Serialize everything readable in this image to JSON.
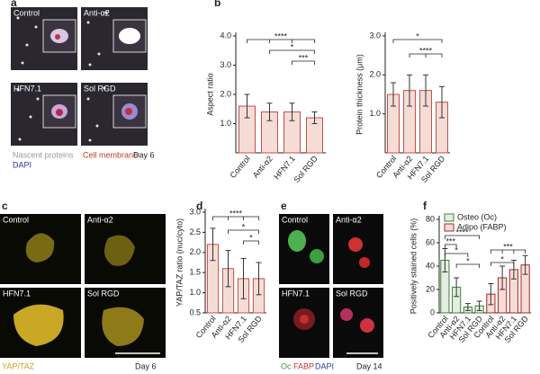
{
  "image_panels": {
    "a": {
      "label": "a",
      "cells": [
        "Control",
        "Anti-α2",
        "HFN7.1",
        "Sol RGD"
      ],
      "legend": [
        "Nascent proteins",
        "Cell membrane",
        "Day 6",
        "DAPI"
      ]
    },
    "c": {
      "label": "c",
      "cells": [
        "Control",
        "Anti-α2",
        "HFN7.1",
        "Sol RGD"
      ],
      "legend": [
        "YAP/TAZ",
        "Day 6"
      ]
    },
    "e": {
      "label": "e",
      "cells": [
        "Control",
        "Anti-α2",
        "HFN7.1",
        "Sol RGD"
      ],
      "legend": [
        "Oc",
        "FABP",
        "DAPI",
        "Day 14"
      ]
    }
  },
  "chart_data": [
    {
      "type": "bar",
      "panel_label": "b",
      "ylabel": "Aspect ratio",
      "categories": [
        "Control",
        "Anti-α2",
        "HFN7.1",
        "Sol RGD"
      ],
      "series": [
        {
          "color": "#f5ddd6",
          "edge": "#c0504d",
          "values": [
            1.6,
            1.4,
            1.4,
            1.2
          ],
          "errors": [
            0.4,
            0.3,
            0.3,
            0.2
          ]
        }
      ],
      "ylim": [
        0,
        4
      ],
      "yticks": [
        {
          "value": 1,
          "label": "1.0"
        },
        {
          "value": 2,
          "label": "2.0"
        },
        {
          "value": 3,
          "label": "3.0"
        },
        {
          "value": 4,
          "label": "4.0"
        }
      ],
      "annotations": [
        "****",
        "*",
        "***"
      ]
    },
    {
      "type": "bar",
      "ylabel": "Protein thickness (μm)",
      "categories": [
        "Control",
        "Anti-α2",
        "HFN7.1",
        "Sol RGD"
      ],
      "series": [
        {
          "color": "#f5ddd6",
          "edge": "#c0504d",
          "values": [
            1.5,
            1.6,
            1.6,
            1.3
          ],
          "errors": [
            0.3,
            0.4,
            0.4,
            0.4
          ]
        }
      ],
      "ylim": [
        0,
        3
      ],
      "yticks": [
        {
          "value": 1,
          "label": "1.0"
        },
        {
          "value": 2,
          "label": "2.0"
        },
        {
          "value": 3,
          "label": "3.0"
        }
      ],
      "annotations": [
        "*",
        "****"
      ]
    },
    {
      "type": "bar",
      "panel_label": "d",
      "ylabel": "YAP/TAZ ratio (nuc/cyto)",
      "categories": [
        "Control",
        "Anti-α2",
        "HFN7.1",
        "Sol RGD"
      ],
      "series": [
        {
          "color": "#f5ddd6",
          "edge": "#c0504d",
          "values": [
            2.2,
            1.6,
            1.35,
            1.35
          ],
          "errors": [
            0.4,
            0.45,
            0.5,
            0.4
          ]
        }
      ],
      "ylim": [
        0.5,
        3
      ],
      "yticks": [
        0.5,
        {
          "value": 1,
          "label": "1.0"
        },
        1.5,
        {
          "value": 2,
          "label": "2.0"
        },
        2.5,
        {
          "value": 3,
          "label": "3.0"
        }
      ],
      "annotations": [
        "****",
        "*",
        "*"
      ]
    },
    {
      "type": "bar",
      "panel_label": "f",
      "ylabel": "Positively stained cells (%)",
      "categories": [
        "Control",
        "Anti-α2",
        "HFN7.1",
        "Sol RGD"
      ],
      "series": [
        {
          "name": "Osteo (Oc)",
          "color": "#e3efe0",
          "edge": "#3f7f3a",
          "values": [
            45,
            22,
            5,
            6
          ],
          "errors": [
            10,
            8,
            3,
            4
          ]
        },
        {
          "name": "Adipo (FABP)",
          "color": "#f5ddd6",
          "edge": "#a8262c",
          "values": [
            16,
            30,
            37,
            41
          ],
          "errors": [
            9,
            10,
            8,
            8
          ]
        }
      ],
      "ylim": [
        0,
        80
      ],
      "yticks": [
        0,
        20,
        40,
        60,
        80
      ],
      "legend": "upper left",
      "annotations": [
        "****",
        "***",
        "*",
        "*",
        "***",
        "*"
      ]
    }
  ]
}
